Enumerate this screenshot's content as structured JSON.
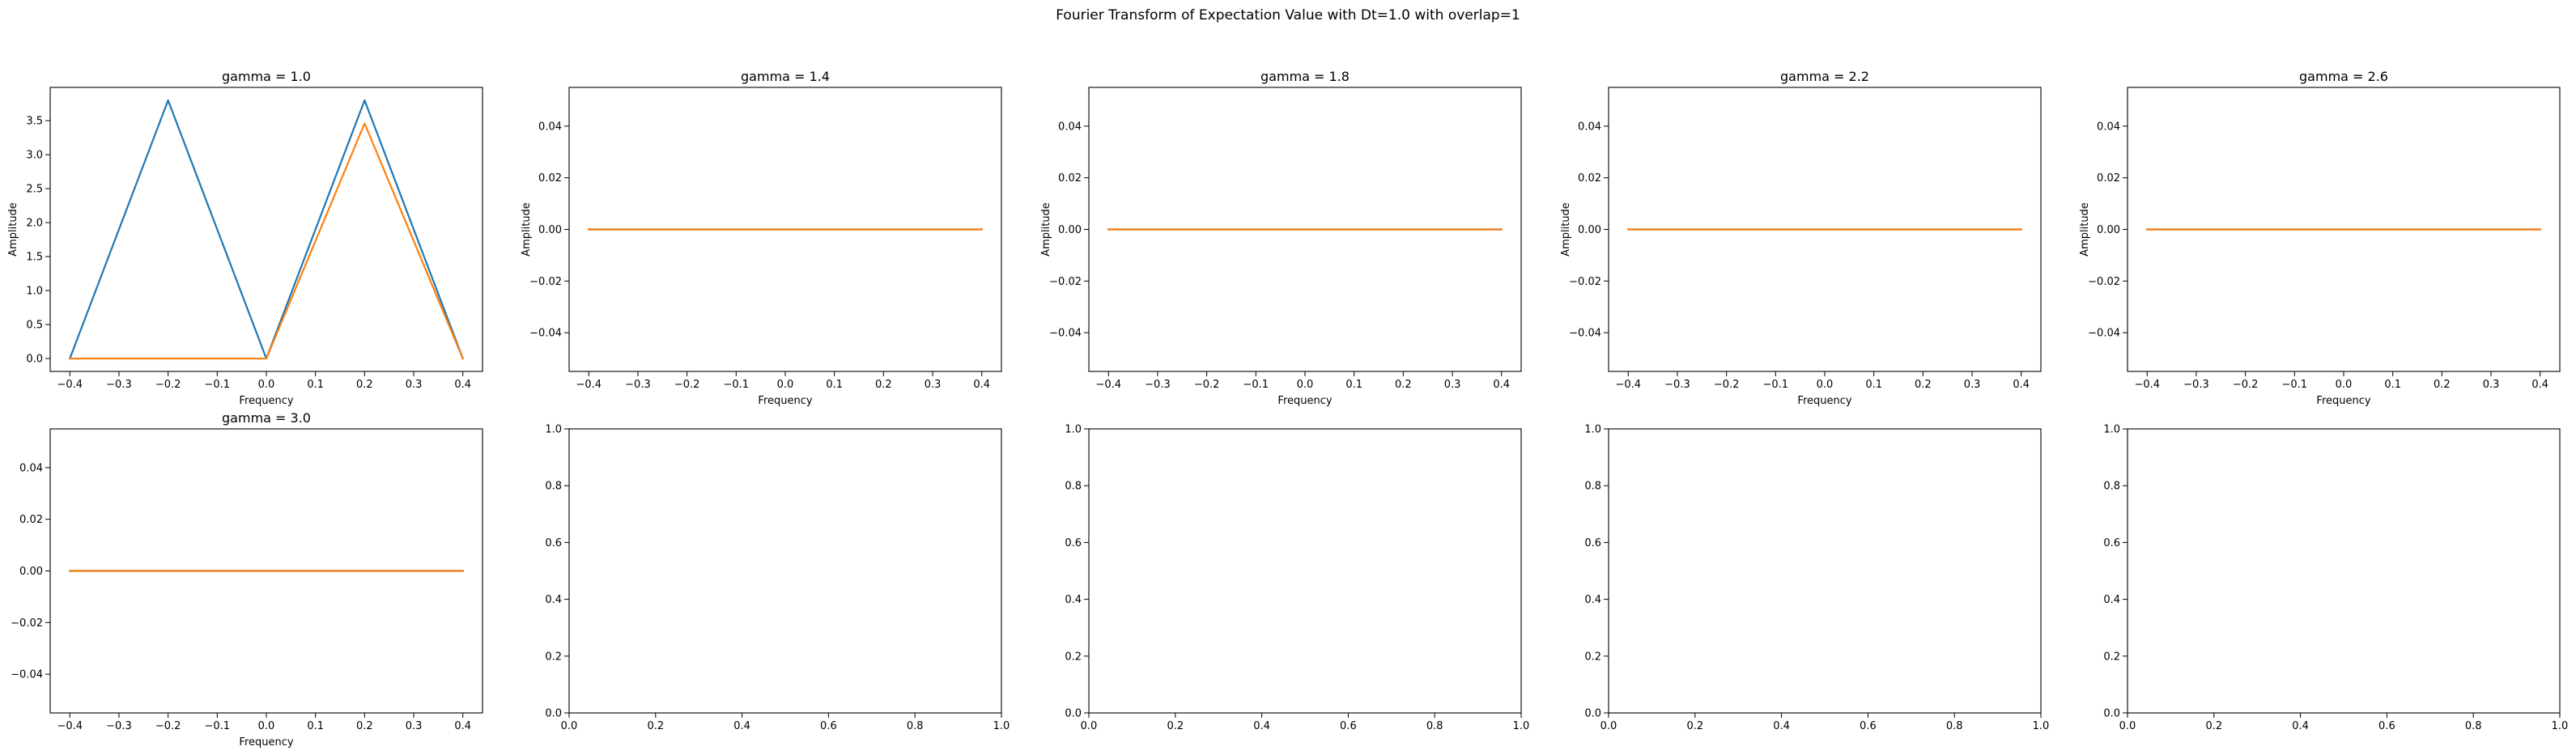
{
  "figure": {
    "suptitle": "Fourier Transform of Expectation Value with Dt=1.0 with overlap=1",
    "colors": {
      "series1": "#1f77b4",
      "series2": "#ff7f0e",
      "axes": "#000000",
      "background": "#ffffff"
    }
  },
  "chart_data": [
    {
      "type": "line",
      "title": "gamma = 1.0",
      "xlabel": "Frequency",
      "ylabel": "Amplitude",
      "xlim": [
        -0.44,
        0.44
      ],
      "ylim": [
        -0.19,
        3.99
      ],
      "xticks": [
        -0.4,
        -0.3,
        -0.2,
        -0.1,
        0.0,
        0.1,
        0.2,
        0.3,
        0.4
      ],
      "xtick_labels": [
        "−0.4",
        "−0.3",
        "−0.2",
        "−0.1",
        "0.0",
        "0.1",
        "0.2",
        "0.3",
        "0.4"
      ],
      "yticks": [
        0.0,
        0.5,
        1.0,
        1.5,
        2.0,
        2.5,
        3.0,
        3.5
      ],
      "ytick_labels": [
        "0.0",
        "0.5",
        "1.0",
        "1.5",
        "2.0",
        "2.5",
        "3.0",
        "3.5"
      ],
      "x": [
        -0.4,
        -0.2,
        0.0,
        0.2,
        0.4
      ],
      "series": [
        {
          "values": [
            0.0,
            3.8,
            0.0,
            3.8,
            0.0
          ],
          "color": "#1f77b4"
        },
        {
          "values": [
            0.0,
            0.0,
            0.0,
            3.46,
            0.0
          ],
          "color": "#ff7f0e"
        }
      ]
    },
    {
      "type": "line",
      "title": "gamma = 1.4",
      "xlabel": "Frequency",
      "ylabel": "Amplitude",
      "xlim": [
        -0.44,
        0.44
      ],
      "ylim": [
        -0.055,
        0.055
      ],
      "xticks": [
        -0.4,
        -0.3,
        -0.2,
        -0.1,
        0.0,
        0.1,
        0.2,
        0.3,
        0.4
      ],
      "xtick_labels": [
        "−0.4",
        "−0.3",
        "−0.2",
        "−0.1",
        "0.0",
        "0.1",
        "0.2",
        "0.3",
        "0.4"
      ],
      "yticks": [
        -0.04,
        -0.02,
        0.0,
        0.02,
        0.04
      ],
      "ytick_labels": [
        "−0.04",
        "−0.02",
        "0.00",
        "0.02",
        "0.04"
      ],
      "x": [
        -0.4,
        -0.2,
        0.0,
        0.2,
        0.4
      ],
      "series": [
        {
          "values": [
            0,
            0,
            0,
            0,
            0
          ],
          "color": "#1f77b4"
        },
        {
          "values": [
            0,
            0,
            0,
            0,
            0
          ],
          "color": "#ff7f0e"
        }
      ]
    },
    {
      "type": "line",
      "title": "gamma = 1.8",
      "xlabel": "Frequency",
      "ylabel": "Amplitude",
      "xlim": [
        -0.44,
        0.44
      ],
      "ylim": [
        -0.055,
        0.055
      ],
      "xticks": [
        -0.4,
        -0.3,
        -0.2,
        -0.1,
        0.0,
        0.1,
        0.2,
        0.3,
        0.4
      ],
      "xtick_labels": [
        "−0.4",
        "−0.3",
        "−0.2",
        "−0.1",
        "0.0",
        "0.1",
        "0.2",
        "0.3",
        "0.4"
      ],
      "yticks": [
        -0.04,
        -0.02,
        0.0,
        0.02,
        0.04
      ],
      "ytick_labels": [
        "−0.04",
        "−0.02",
        "0.00",
        "0.02",
        "0.04"
      ],
      "x": [
        -0.4,
        -0.2,
        0.0,
        0.2,
        0.4
      ],
      "series": [
        {
          "values": [
            0,
            0,
            0,
            0,
            0
          ],
          "color": "#1f77b4"
        },
        {
          "values": [
            0,
            0,
            0,
            0,
            0
          ],
          "color": "#ff7f0e"
        }
      ]
    },
    {
      "type": "line",
      "title": "gamma = 2.2",
      "xlabel": "Frequency",
      "ylabel": "Amplitude",
      "xlim": [
        -0.44,
        0.44
      ],
      "ylim": [
        -0.055,
        0.055
      ],
      "xticks": [
        -0.4,
        -0.3,
        -0.2,
        -0.1,
        0.0,
        0.1,
        0.2,
        0.3,
        0.4
      ],
      "xtick_labels": [
        "−0.4",
        "−0.3",
        "−0.2",
        "−0.1",
        "0.0",
        "0.1",
        "0.2",
        "0.3",
        "0.4"
      ],
      "yticks": [
        -0.04,
        -0.02,
        0.0,
        0.02,
        0.04
      ],
      "ytick_labels": [
        "−0.04",
        "−0.02",
        "0.00",
        "0.02",
        "0.04"
      ],
      "x": [
        -0.4,
        -0.2,
        0.0,
        0.2,
        0.4
      ],
      "series": [
        {
          "values": [
            0,
            0,
            0,
            0,
            0
          ],
          "color": "#1f77b4"
        },
        {
          "values": [
            0,
            0,
            0,
            0,
            0
          ],
          "color": "#ff7f0e"
        }
      ]
    },
    {
      "type": "line",
      "title": "gamma = 2.6",
      "xlabel": "Frequency",
      "ylabel": "Amplitude",
      "xlim": [
        -0.44,
        0.44
      ],
      "ylim": [
        -0.055,
        0.055
      ],
      "xticks": [
        -0.4,
        -0.3,
        -0.2,
        -0.1,
        0.0,
        0.1,
        0.2,
        0.3,
        0.4
      ],
      "xtick_labels": [
        "−0.4",
        "−0.3",
        "−0.2",
        "−0.1",
        "0.0",
        "0.1",
        "0.2",
        "0.3",
        "0.4"
      ],
      "yticks": [
        -0.04,
        -0.02,
        0.0,
        0.02,
        0.04
      ],
      "ytick_labels": [
        "−0.04",
        "−0.02",
        "0.00",
        "0.02",
        "0.04"
      ],
      "x": [
        -0.4,
        -0.2,
        0.0,
        0.2,
        0.4
      ],
      "series": [
        {
          "values": [
            0,
            0,
            0,
            0,
            0
          ],
          "color": "#1f77b4"
        },
        {
          "values": [
            0,
            0,
            0,
            0,
            0
          ],
          "color": "#ff7f0e"
        }
      ]
    },
    {
      "type": "line",
      "title": "gamma = 3.0",
      "xlabel": "Frequency",
      "ylabel": "",
      "xlim": [
        -0.44,
        0.44
      ],
      "ylim": [
        -0.055,
        0.055
      ],
      "xticks": [
        -0.4,
        -0.3,
        -0.2,
        -0.1,
        0.0,
        0.1,
        0.2,
        0.3,
        0.4
      ],
      "xtick_labels": [
        "−0.4",
        "−0.3",
        "−0.2",
        "−0.1",
        "0.0",
        "0.1",
        "0.2",
        "0.3",
        "0.4"
      ],
      "yticks": [
        -0.04,
        -0.02,
        0.0,
        0.02,
        0.04
      ],
      "ytick_labels": [
        "−0.04",
        "−0.02",
        "0.00",
        "0.02",
        "0.04"
      ],
      "x": [
        -0.4,
        -0.2,
        0.0,
        0.2,
        0.4
      ],
      "series": [
        {
          "values": [
            0,
            0,
            0,
            0,
            0
          ],
          "color": "#1f77b4"
        },
        {
          "values": [
            0,
            0,
            0,
            0,
            0
          ],
          "color": "#ff7f0e"
        }
      ]
    },
    {
      "type": "line",
      "title": "",
      "xlabel": "",
      "ylabel": "",
      "xlim": [
        0,
        1
      ],
      "ylim": [
        0,
        1
      ],
      "xticks": [
        0.0,
        0.2,
        0.4,
        0.6,
        0.8,
        1.0
      ],
      "xtick_labels": [
        "0.0",
        "0.2",
        "0.4",
        "0.6",
        "0.8",
        "1.0"
      ],
      "yticks": [
        0.0,
        0.2,
        0.4,
        0.6,
        0.8,
        1.0
      ],
      "ytick_labels": [
        "0.0",
        "0.2",
        "0.4",
        "0.6",
        "0.8",
        "1.0"
      ],
      "x": [],
      "series": []
    },
    {
      "type": "line",
      "title": "",
      "xlabel": "",
      "ylabel": "",
      "xlim": [
        0,
        1
      ],
      "ylim": [
        0,
        1
      ],
      "xticks": [
        0.0,
        0.2,
        0.4,
        0.6,
        0.8,
        1.0
      ],
      "xtick_labels": [
        "0.0",
        "0.2",
        "0.4",
        "0.6",
        "0.8",
        "1.0"
      ],
      "yticks": [
        0.0,
        0.2,
        0.4,
        0.6,
        0.8,
        1.0
      ],
      "ytick_labels": [
        "0.0",
        "0.2",
        "0.4",
        "0.6",
        "0.8",
        "1.0"
      ],
      "x": [],
      "series": []
    },
    {
      "type": "line",
      "title": "",
      "xlabel": "",
      "ylabel": "",
      "xlim": [
        0,
        1
      ],
      "ylim": [
        0,
        1
      ],
      "xticks": [
        0.0,
        0.2,
        0.4,
        0.6,
        0.8,
        1.0
      ],
      "xtick_labels": [
        "0.0",
        "0.2",
        "0.4",
        "0.6",
        "0.8",
        "1.0"
      ],
      "yticks": [
        0.0,
        0.2,
        0.4,
        0.6,
        0.8,
        1.0
      ],
      "ytick_labels": [
        "0.0",
        "0.2",
        "0.4",
        "0.6",
        "0.8",
        "1.0"
      ],
      "x": [],
      "series": []
    },
    {
      "type": "line",
      "title": "",
      "xlabel": "",
      "ylabel": "",
      "xlim": [
        0,
        1
      ],
      "ylim": [
        0,
        1
      ],
      "xticks": [
        0.0,
        0.2,
        0.4,
        0.6,
        0.8,
        1.0
      ],
      "xtick_labels": [
        "0.0",
        "0.2",
        "0.4",
        "0.6",
        "0.8",
        "1.0"
      ],
      "yticks": [
        0.0,
        0.2,
        0.4,
        0.6,
        0.8,
        1.0
      ],
      "ytick_labels": [
        "0.0",
        "0.2",
        "0.4",
        "0.6",
        "0.8",
        "1.0"
      ],
      "x": [],
      "series": []
    }
  ]
}
